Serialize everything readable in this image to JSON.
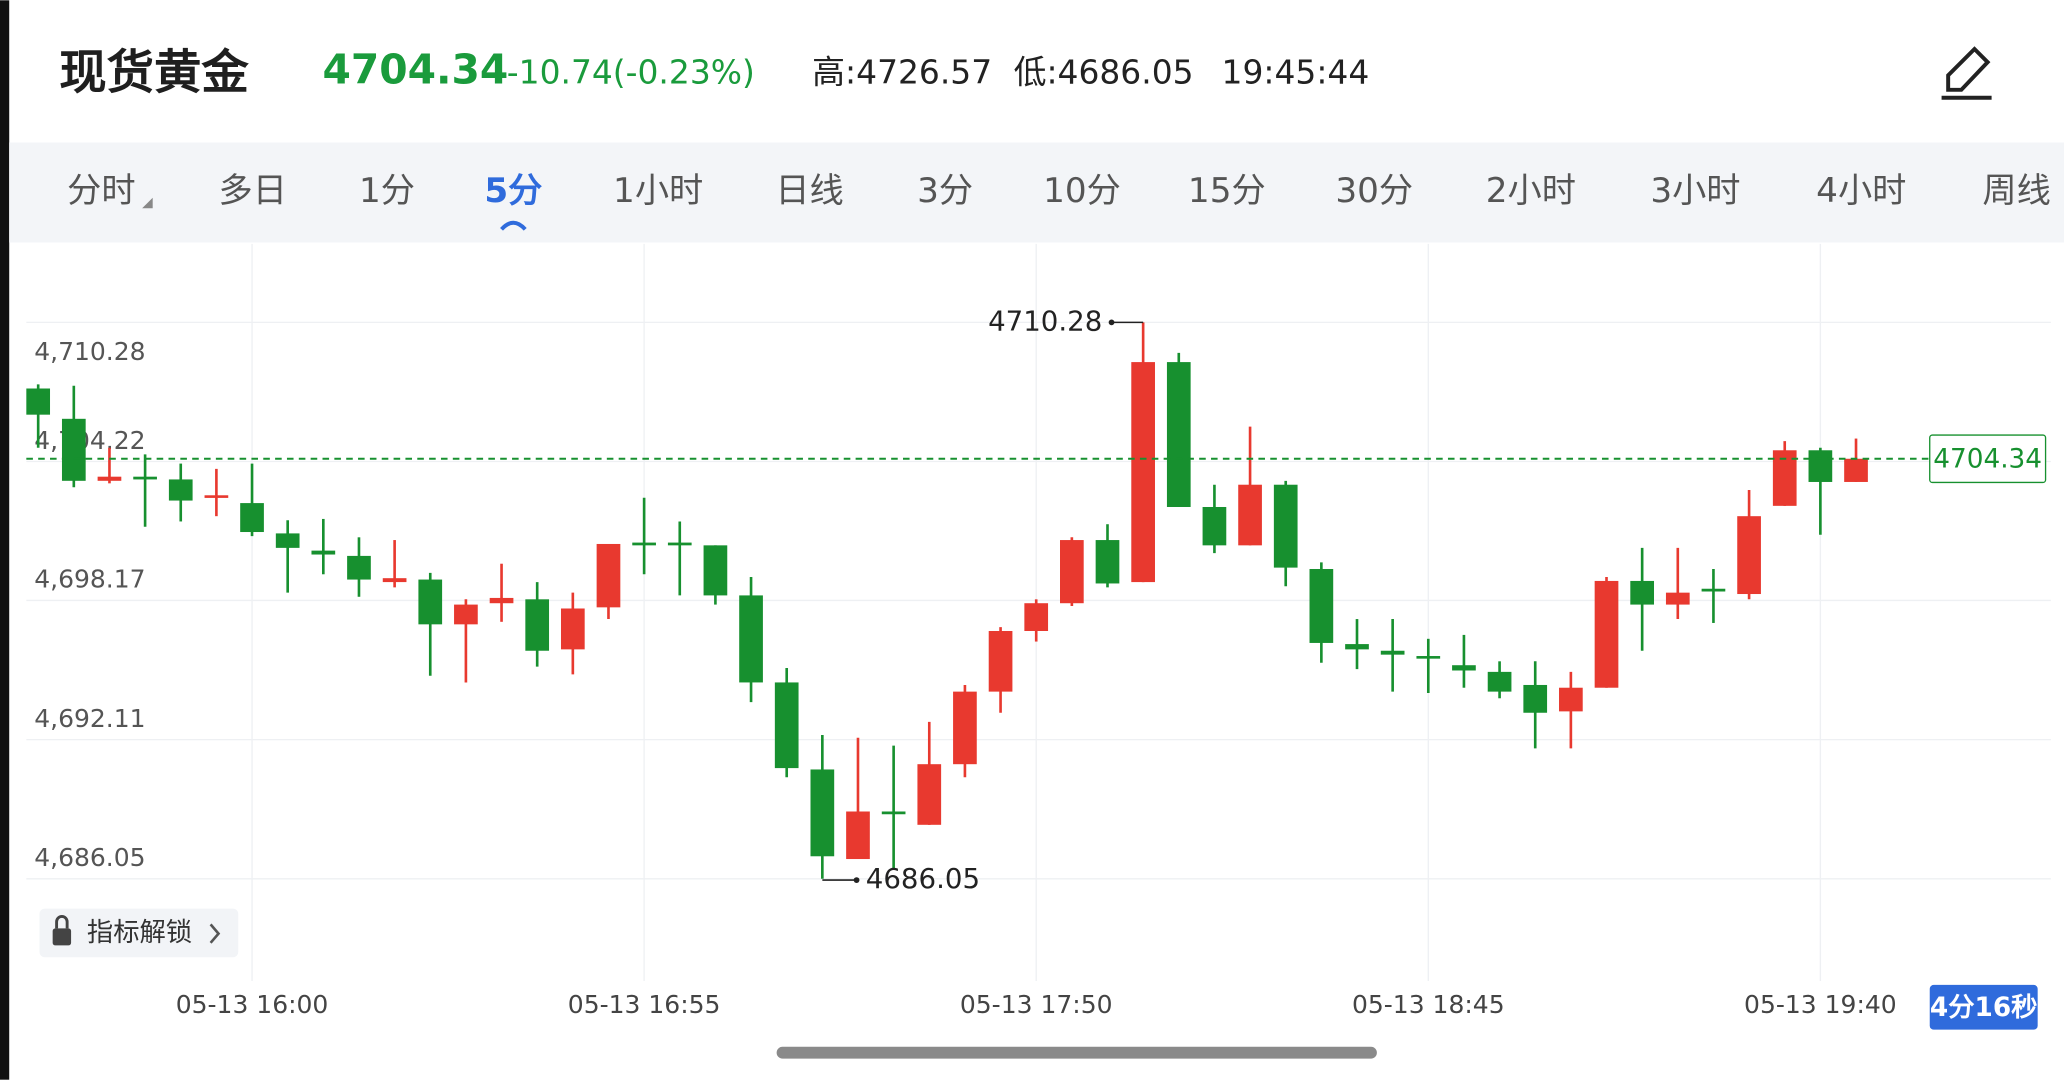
{
  "header": {
    "title": "现货黄金",
    "price": "4704.34",
    "change": "-10.74(-0.23%)",
    "high": "高:4726.57",
    "low": "低:4686.05",
    "time": "19:45:44"
  },
  "tabs": {
    "items": [
      "分时",
      "多日",
      "1分",
      "5分",
      "1小时",
      "日线",
      "3分",
      "10分",
      "15分",
      "30分",
      "2小时",
      "3小时",
      "4小时",
      "周线"
    ],
    "active": 3
  },
  "indicator_button": "指标解锁",
  "countdown": "4分16秒",
  "chart_data": {
    "type": "candlestick",
    "categories": [
      null,
      null,
      null,
      null,
      null,
      null,
      "05-13 16:00",
      null,
      null,
      null,
      null,
      null,
      null,
      null,
      null,
      null,
      null,
      "05-13 16:55",
      null,
      null,
      null,
      null,
      null,
      null,
      null,
      null,
      null,
      null,
      "05-13 17:50",
      null,
      null,
      null,
      null,
      null,
      null,
      null,
      null,
      null,
      null,
      "05-13 18:45",
      null,
      null,
      null,
      null,
      null,
      null,
      null,
      null,
      null,
      null,
      "05-13 19:40",
      null
    ],
    "open": [
      4707.4,
      4706.08,
      4703.38,
      4703.56,
      4703.44,
      4702.64,
      4702.41,
      4701.09,
      4700.34,
      4700.11,
      4698.97,
      4699.08,
      4697.13,
      4698.05,
      4698.22,
      4696.04,
      4697.87,
      4700.69,
      4700.69,
      4700.57,
      4698.39,
      4694.6,
      4690.81,
      4686.91,
      4688.98,
      4688.4,
      4691.04,
      4694.2,
      4696.84,
      4698.05,
      4700.8,
      4698.97,
      4708.55,
      4702.24,
      4700.57,
      4703.21,
      4699.54,
      4696.27,
      4695.98,
      4695.75,
      4695.35,
      4695.06,
      4694.49,
      4693.34,
      4694.37,
      4699.02,
      4697.99,
      4698.68,
      4698.45,
      4702.29,
      4704.71,
      4703.33
    ],
    "high": [
      4707.58,
      4707.52,
      4704.82,
      4704.53,
      4704.13,
      4703.9,
      4704.13,
      4701.66,
      4701.72,
      4700.92,
      4700.8,
      4699.37,
      4698.22,
      4699.77,
      4698.97,
      4698.51,
      4700.63,
      4702.64,
      4701.61,
      4700.57,
      4699.19,
      4695.23,
      4692.31,
      4692.19,
      4691.85,
      4692.88,
      4694.49,
      4697.01,
      4698.22,
      4700.92,
      4701.49,
      4710.28,
      4708.95,
      4703.21,
      4705.74,
      4703.38,
      4699.83,
      4697.36,
      4697.36,
      4696.5,
      4696.67,
      4695.52,
      4695.52,
      4695.06,
      4699.19,
      4700.46,
      4700.46,
      4699.54,
      4702.98,
      4705.11,
      4704.82,
      4705.22
    ],
    "low": [
      4704.82,
      4703.1,
      4703.27,
      4701.38,
      4701.61,
      4701.84,
      4700.97,
      4698.51,
      4699.31,
      4698.33,
      4698.74,
      4694.89,
      4694.6,
      4697.24,
      4695.29,
      4694.95,
      4697.36,
      4699.31,
      4698.39,
      4697.99,
      4693.74,
      4690.47,
      4686.05,
      4686.91,
      4686.45,
      4688.4,
      4690.47,
      4693.28,
      4696.38,
      4697.93,
      4698.74,
      4698.97,
      4702.24,
      4700.23,
      4700.57,
      4698.79,
      4695.46,
      4695.18,
      4694.2,
      4694.14,
      4694.37,
      4693.91,
      4691.73,
      4691.73,
      4694.37,
      4695.98,
      4697.36,
      4697.19,
      4698.22,
      4702.29,
      4701.03,
      4703.33
    ],
    "close": [
      4706.26,
      4703.38,
      4703.56,
      4703.44,
      4702.52,
      4702.75,
      4701.15,
      4700.46,
      4700.17,
      4699.08,
      4699.14,
      4697.13,
      4697.99,
      4698.28,
      4695.98,
      4697.82,
      4700.63,
      4700.57,
      4700.57,
      4698.39,
      4694.6,
      4690.87,
      4687.03,
      4688.98,
      4688.86,
      4691.04,
      4694.2,
      4696.84,
      4698.05,
      4700.8,
      4698.91,
      4708.55,
      4702.24,
      4700.57,
      4703.21,
      4699.6,
      4696.32,
      4696.04,
      4695.81,
      4695.64,
      4695.12,
      4694.2,
      4693.28,
      4694.37,
      4699.02,
      4697.99,
      4698.51,
      4698.56,
      4701.84,
      4704.71,
      4703.33,
      4704.34
    ],
    "up_color": "#e8392f",
    "down_color": "#17902f",
    "ylim": [
      4681.6,
      4713.7
    ],
    "yticks": [
      {
        "value": 4686.05,
        "label": "4,686.05"
      },
      {
        "value": 4692.11,
        "label": "4,692.11"
      },
      {
        "value": 4698.17,
        "label": "4,698.17"
      },
      {
        "value": 4704.22,
        "label": "4,704.22"
      },
      {
        "value": 4710.28,
        "label": "4,710.28"
      }
    ],
    "grid": true,
    "last_price": 4704.34,
    "high_marker": 4710.28,
    "low_marker": 4686.05
  }
}
